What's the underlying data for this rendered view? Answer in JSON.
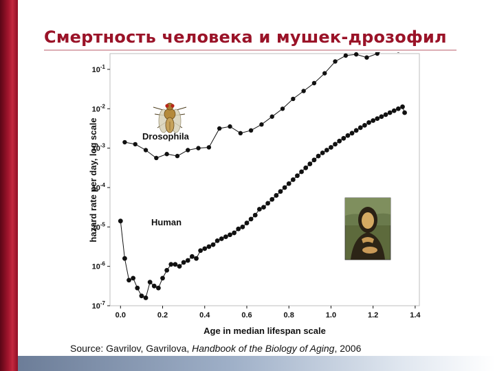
{
  "slide": {
    "title": "Смертность человека и мушек-дрозофил",
    "source_prefix": "Source: Gavrilov, Gavrilova, ",
    "source_book": "Handbook of the Biology of Aging",
    "source_year": ", 2006"
  },
  "images": {
    "fly": "drosophila-fly-illustration",
    "portrait": "mona-lisa-portrait"
  },
  "colors": {
    "accent": "#9a1328",
    "points": "#111111"
  },
  "chart_data": {
    "type": "scatter",
    "title": "",
    "xlabel": "Age in median lifespan scale",
    "ylabel": "hazard rate per day, log scale",
    "xlim": [
      -0.05,
      1.42
    ],
    "ylim": [
      -7,
      -0.6
    ],
    "y_scale": "log10",
    "grid": false,
    "x_ticks": [
      "0.0",
      "0.2",
      "0.4",
      "0.6",
      "0.8",
      "1.0",
      "1.2",
      "1.4"
    ],
    "y_ticks": [
      {
        "value": -1,
        "label": "10-1"
      },
      {
        "value": -2,
        "label": "10-2"
      },
      {
        "value": -3,
        "label": "10-3"
      },
      {
        "value": -4,
        "label": "10-4"
      },
      {
        "value": -5,
        "label": "10-5"
      },
      {
        "value": -6,
        "label": "10-6"
      },
      {
        "value": -7,
        "label": "10-7"
      }
    ],
    "series": [
      {
        "name": "Drosophila",
        "x": [
          0.02,
          0.07,
          0.12,
          0.17,
          0.22,
          0.27,
          0.32,
          0.37,
          0.42,
          0.47,
          0.52,
          0.57,
          0.62,
          0.67,
          0.72,
          0.77,
          0.82,
          0.87,
          0.92,
          0.97,
          1.02,
          1.07,
          1.12,
          1.17,
          1.22,
          1.27,
          1.32
        ],
        "log_y": [
          -2.85,
          -2.9,
          -3.05,
          -3.25,
          -3.15,
          -3.2,
          -3.05,
          -3.0,
          -2.98,
          -2.5,
          -2.45,
          -2.62,
          -2.55,
          -2.4,
          -2.2,
          -2.0,
          -1.75,
          -1.55,
          -1.35,
          -1.1,
          -0.8,
          -0.65,
          -0.62,
          -0.7,
          -0.6,
          -0.45,
          -0.52
        ]
      },
      {
        "name": "Human",
        "x": [
          0.0,
          0.02,
          0.04,
          0.06,
          0.08,
          0.1,
          0.12,
          0.14,
          0.16,
          0.18,
          0.2,
          0.22,
          0.24,
          0.26,
          0.28,
          0.3,
          0.32,
          0.34,
          0.36,
          0.38,
          0.4,
          0.42,
          0.44,
          0.46,
          0.48,
          0.5,
          0.52,
          0.54,
          0.56,
          0.58,
          0.6,
          0.62,
          0.64,
          0.66,
          0.68,
          0.7,
          0.72,
          0.74,
          0.76,
          0.78,
          0.8,
          0.82,
          0.84,
          0.86,
          0.88,
          0.9,
          0.92,
          0.94,
          0.96,
          0.98,
          1.0,
          1.02,
          1.04,
          1.06,
          1.08,
          1.1,
          1.12,
          1.14,
          1.16,
          1.18,
          1.2,
          1.22,
          1.24,
          1.26,
          1.28,
          1.3,
          1.32,
          1.34,
          1.35
        ],
        "log_y": [
          -4.85,
          -5.8,
          -6.35,
          -6.3,
          -6.55,
          -6.75,
          -6.8,
          -6.4,
          -6.5,
          -6.55,
          -6.3,
          -6.1,
          -5.95,
          -5.95,
          -6.0,
          -5.9,
          -5.85,
          -5.75,
          -5.8,
          -5.6,
          -5.55,
          -5.5,
          -5.45,
          -5.35,
          -5.3,
          -5.25,
          -5.2,
          -5.15,
          -5.05,
          -5.0,
          -4.9,
          -4.8,
          -4.7,
          -4.55,
          -4.5,
          -4.4,
          -4.3,
          -4.2,
          -4.1,
          -4.0,
          -3.9,
          -3.8,
          -3.7,
          -3.6,
          -3.5,
          -3.4,
          -3.3,
          -3.2,
          -3.12,
          -3.05,
          -2.98,
          -2.9,
          -2.82,
          -2.75,
          -2.68,
          -2.62,
          -2.55,
          -2.48,
          -2.42,
          -2.35,
          -2.3,
          -2.25,
          -2.2,
          -2.15,
          -2.1,
          -2.05,
          -2.0,
          -1.95,
          -2.1
        ]
      }
    ]
  }
}
